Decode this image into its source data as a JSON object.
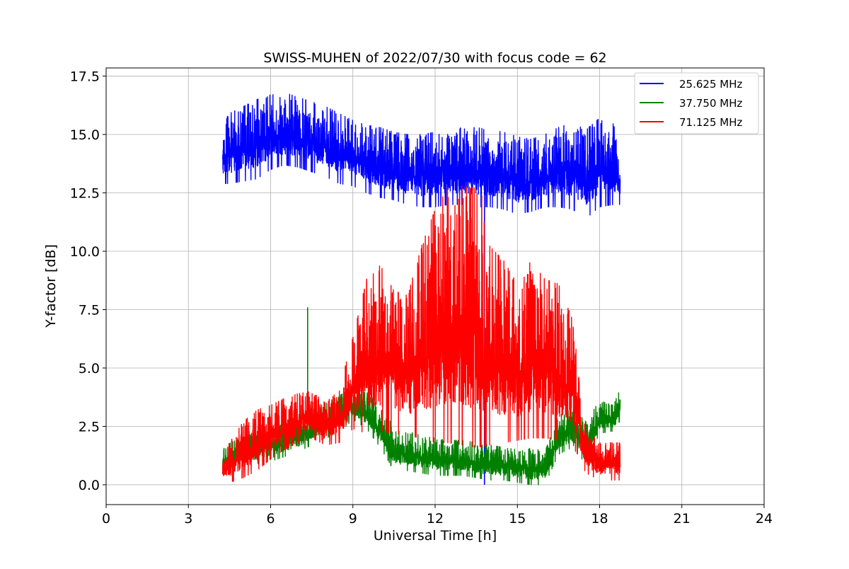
{
  "chart_data": {
    "type": "line",
    "title": "SWISS-MUHEN of 2022/07/30 with focus code = 62",
    "xlabel": "Universal Time [h]",
    "ylabel": "Y-factor [dB]",
    "xlim": [
      0,
      24
    ],
    "ylim": [
      -0.85,
      17.85
    ],
    "x_ticks": [
      0,
      3,
      6,
      9,
      12,
      15,
      18,
      21,
      24
    ],
    "x_tick_labels": [
      "0",
      "3",
      "6",
      "9",
      "12",
      "15",
      "18",
      "21",
      "24"
    ],
    "y_ticks": [
      0,
      2.5,
      5,
      7.5,
      10,
      12.5,
      15,
      17.5
    ],
    "y_tick_labels": [
      "0.0",
      "2.5",
      "5.0",
      "7.5",
      "10.0",
      "12.5",
      "15.0",
      "17.5"
    ],
    "grid": true,
    "legend_position": "top-right",
    "series": [
      {
        "name": "25.625 MHz",
        "color": "#0000ff",
        "x": [
          4.25,
          4.5,
          5.0,
          5.5,
          6.0,
          6.5,
          7.0,
          7.5,
          8.0,
          8.5,
          9.0,
          9.5,
          10.0,
          10.5,
          11.0,
          11.5,
          12.0,
          12.5,
          13.0,
          13.5,
          14.0,
          14.5,
          15.0,
          15.5,
          16.0,
          16.5,
          17.0,
          17.5,
          18.0,
          18.5,
          18.75
        ],
        "low": [
          12.9,
          12.9,
          13.0,
          13.1,
          13.5,
          13.7,
          13.6,
          13.4,
          13.2,
          12.9,
          12.8,
          12.5,
          12.3,
          12.2,
          12.0,
          11.9,
          11.9,
          12.0,
          12.0,
          11.9,
          11.9,
          11.8,
          11.6,
          11.7,
          11.9,
          11.9,
          11.8,
          11.4,
          11.9,
          12.0,
          12.0
        ],
        "high": [
          15.5,
          15.9,
          16.2,
          16.5,
          16.7,
          16.8,
          16.6,
          16.4,
          16.2,
          15.9,
          15.6,
          15.4,
          15.3,
          15.1,
          15.0,
          15.0,
          15.1,
          15.2,
          15.3,
          15.3,
          15.2,
          15.1,
          14.9,
          14.8,
          15.0,
          15.3,
          15.5,
          15.2,
          15.7,
          15.5,
          14.2
        ],
        "spikes": [
          {
            "x": 13.8,
            "y": 0.0
          }
        ]
      },
      {
        "name": "37.750 MHz",
        "color": "#008000",
        "x": [
          4.25,
          4.5,
          5.0,
          5.5,
          6.0,
          6.5,
          7.0,
          7.5,
          8.0,
          8.5,
          9.0,
          9.5,
          10.0,
          10.5,
          11.0,
          11.5,
          12.0,
          12.5,
          13.0,
          13.5,
          14.0,
          14.5,
          15.0,
          15.5,
          16.0,
          16.5,
          17.0,
          17.5,
          18.0,
          18.5,
          18.75
        ],
        "low": [
          0.4,
          0.5,
          0.7,
          0.9,
          1.0,
          1.2,
          1.4,
          1.7,
          2.0,
          2.2,
          2.8,
          2.4,
          1.6,
          0.6,
          0.6,
          0.5,
          0.4,
          0.4,
          0.4,
          0.3,
          0.2,
          0.2,
          0.1,
          0.0,
          0.0,
          1.3,
          1.6,
          0.9,
          2.2,
          2.3,
          2.4
        ],
        "high": [
          1.5,
          1.8,
          2.0,
          2.3,
          2.5,
          2.7,
          3.0,
          3.2,
          3.5,
          3.8,
          4.2,
          4.0,
          3.3,
          2.5,
          2.3,
          2.1,
          2.0,
          1.9,
          1.9,
          1.8,
          1.7,
          1.6,
          1.5,
          1.6,
          1.4,
          3.0,
          3.3,
          2.7,
          3.6,
          3.4,
          4.1
        ],
        "spikes": [
          {
            "x": 7.35,
            "y": 7.6
          }
        ]
      },
      {
        "name": "71.125 MHz",
        "color": "#ff0000",
        "x": [
          4.25,
          4.5,
          5.0,
          5.5,
          6.0,
          6.5,
          7.0,
          7.5,
          8.0,
          8.5,
          9.0,
          9.5,
          10.0,
          10.5,
          11.0,
          11.5,
          12.0,
          12.5,
          13.0,
          13.5,
          14.0,
          14.5,
          15.0,
          15.5,
          16.0,
          16.5,
          17.0,
          17.5,
          18.0,
          18.5,
          18.75
        ],
        "low": [
          0.1,
          0.1,
          0.3,
          0.6,
          1.1,
          1.5,
          1.8,
          2.0,
          1.7,
          1.8,
          2.4,
          2.2,
          2.3,
          2.2,
          2.1,
          2.0,
          1.8,
          1.8,
          1.7,
          1.6,
          1.7,
          1.8,
          1.9,
          2.0,
          2.0,
          1.9,
          1.8,
          0.5,
          0.2,
          0.2,
          0.2
        ],
        "high": [
          1.2,
          1.8,
          2.7,
          3.2,
          3.4,
          3.7,
          3.9,
          4.0,
          3.5,
          4.1,
          6.3,
          8.8,
          9.4,
          8.3,
          8.1,
          10.2,
          11.8,
          12.8,
          12.8,
          12.7,
          10.2,
          9.6,
          8.6,
          9.6,
          8.8,
          8.6,
          7.1,
          2.4,
          1.8,
          1.8,
          1.8
        ],
        "spikes": [
          {
            "x": 13.3,
            "y": 12.7
          },
          {
            "x": 12.3,
            "y": 11.6
          },
          {
            "x": 13.7,
            "y": 12.4
          }
        ]
      }
    ]
  }
}
